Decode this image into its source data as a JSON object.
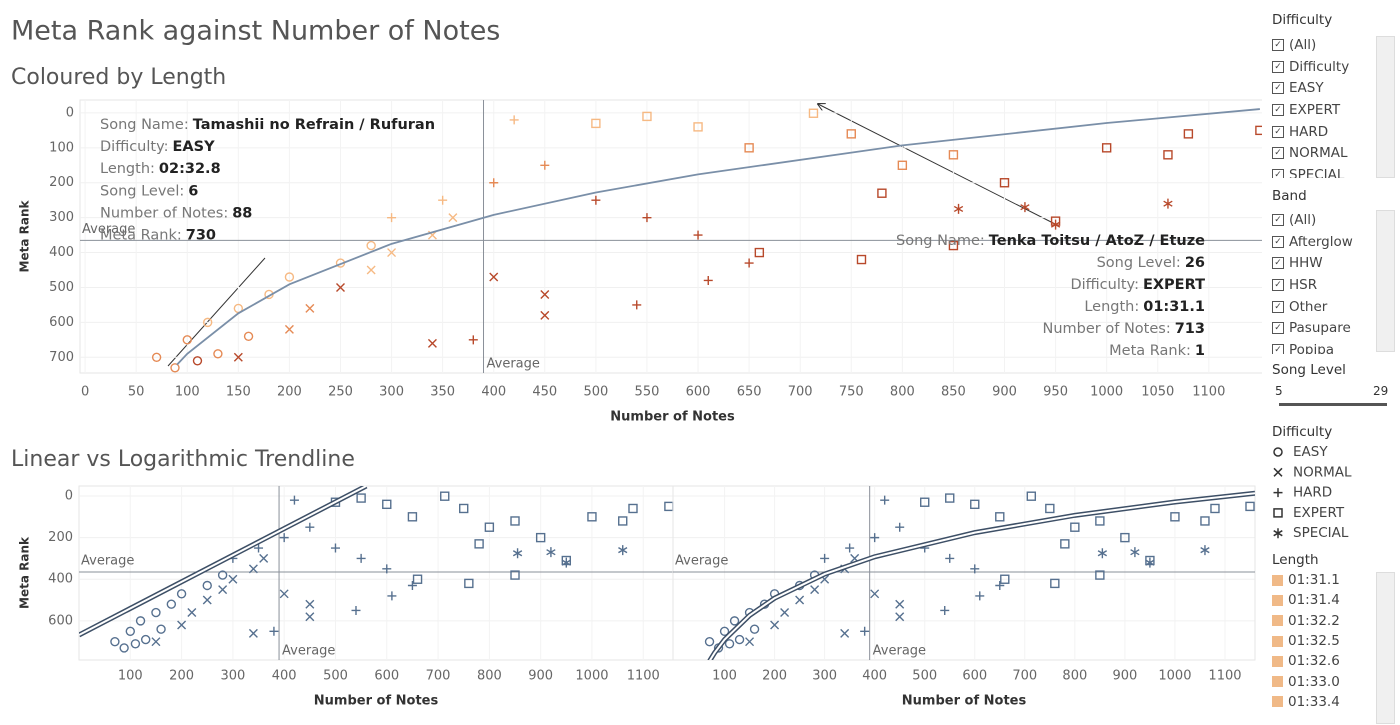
{
  "title": "Meta Rank against Number of Notes",
  "chart_data": [
    {
      "type": "scatter",
      "title": "Coloured by Length",
      "x_label": "Number of Notes",
      "y_label": "Meta Rank",
      "xlim": [
        -5,
        1155
      ],
      "ylim": [
        745,
        -37
      ],
      "xticks": [
        0,
        50,
        100,
        150,
        200,
        250,
        300,
        350,
        400,
        450,
        500,
        550,
        600,
        650,
        700,
        750,
        800,
        850,
        900,
        950,
        1000,
        1050,
        1100
      ],
      "yticks": [
        0,
        100,
        200,
        300,
        400,
        500,
        600,
        700
      ],
      "reference_lines": {
        "x": 390,
        "y": 365,
        "label": "Average"
      },
      "trendline": {
        "x": [
          90,
          100,
          150,
          200,
          300,
          400,
          500,
          600,
          800,
          1000,
          1150
        ],
        "values": [
          721,
          690,
          574,
          491,
          375,
          292,
          228,
          176,
          93,
          29,
          -11
        ],
        "color": "#7a8fa8"
      },
      "series": [
        {
          "name": "EASY",
          "marker": "circle",
          "x": [
            88,
            70,
            100,
            120,
            150,
            180,
            130,
            200,
            250,
            280,
            110,
            160
          ],
          "values": [
            730,
            700,
            650,
            600,
            560,
            520,
            690,
            470,
            430,
            380,
            710,
            640
          ],
          "colors": [
            "#e58a55",
            "#e58a55",
            "#e58a55",
            "#f6b983",
            "#f6b983",
            "#f6b983",
            "#e58a55",
            "#f6b983",
            "#f6b983",
            "#f6b983",
            "#b8492b",
            "#e58a55"
          ]
        },
        {
          "name": "NORMAL",
          "marker": "cross",
          "x": [
            150,
            200,
            220,
            250,
            280,
            300,
            340,
            360,
            400,
            450,
            340,
            450
          ],
          "values": [
            700,
            620,
            560,
            500,
            450,
            400,
            350,
            300,
            470,
            520,
            660,
            580
          ],
          "colors": [
            "#b8492b",
            "#e58a55",
            "#e58a55",
            "#b8492b",
            "#f6b983",
            "#f6b983",
            "#f6b983",
            "#f6b983",
            "#b8492b",
            "#b8492b",
            "#b8492b",
            "#b8492b"
          ]
        },
        {
          "name": "HARD",
          "marker": "plus",
          "x": [
            300,
            350,
            400,
            450,
            500,
            550,
            600,
            650,
            380,
            540,
            610,
            420
          ],
          "values": [
            300,
            250,
            200,
            150,
            250,
            300,
            350,
            430,
            650,
            550,
            480,
            20
          ],
          "colors": [
            "#f6b983",
            "#f6b983",
            "#e58a55",
            "#e58a55",
            "#b8492b",
            "#b8492b",
            "#b8492b",
            "#b8492b",
            "#b8492b",
            "#b8492b",
            "#b8492b",
            "#f6b983"
          ]
        },
        {
          "name": "EXPERT",
          "marker": "square",
          "x": [
            500,
            550,
            600,
            650,
            713,
            750,
            800,
            850,
            900,
            1000,
            1060,
            1150,
            1080,
            660,
            760,
            850,
            950,
            780
          ],
          "values": [
            30,
            10,
            40,
            100,
            1,
            60,
            150,
            120,
            200,
            100,
            120,
            50,
            60,
            400,
            420,
            380,
            310,
            230
          ],
          "colors": [
            "#f6b983",
            "#f6b983",
            "#f6b983",
            "#e58a55",
            "#f6b983",
            "#e58a55",
            "#e58a55",
            "#e58a55",
            "#b8492b",
            "#b8492b",
            "#b8492b",
            "#b8492b",
            "#b8492b",
            "#b8492b",
            "#b8492b",
            "#b8492b",
            "#b8492b",
            "#b8492b"
          ]
        },
        {
          "name": "SPECIAL",
          "marker": "star",
          "x": [
            855,
            920,
            950,
            1060
          ],
          "values": [
            275,
            270,
            320,
            260
          ],
          "colors": [
            "#b8492b",
            "#b8492b",
            "#b8492b",
            "#b8492b"
          ]
        }
      ],
      "annotations": [
        {
          "lines": [
            {
              "key": "Song Name:",
              "value": "Tamashii no Refrain / Rufuran"
            },
            {
              "key": "Difficulty:",
              "value": "EASY"
            },
            {
              "key": "Length:",
              "value": "02:32.8"
            },
            {
              "key": "Song Level:",
              "value": 6
            },
            {
              "key": "Number of Notes:",
              "value": 88
            },
            {
              "key": "Meta Rank:",
              "value": 730
            }
          ]
        },
        {
          "lines": [
            {
              "key": "Song Name:",
              "value": "Tenka Toitsu / AtoZ / Etuze"
            },
            {
              "key": "Song Level:",
              "value": 26
            },
            {
              "key": "Difficulty:",
              "value": "EXPERT"
            },
            {
              "key": "Length:",
              "value": "01:31.1"
            },
            {
              "key": "Number of Notes:",
              "value": 713
            },
            {
              "key": "Meta Rank:",
              "value": 1
            }
          ]
        }
      ]
    },
    {
      "type": "scatter",
      "title": "Linear vs Logarithmic Trendline",
      "x_label": "Number of Notes",
      "y_label": "Meta Rank",
      "color": "#56708f",
      "xlim": [
        0,
        1158
      ],
      "ylim": [
        788,
        -48
      ],
      "xticks": [
        100,
        200,
        300,
        400,
        500,
        600,
        700,
        800,
        900,
        1000,
        1100
      ],
      "yticks": [
        0,
        200,
        400,
        600
      ],
      "reference_lines": {
        "x": 390,
        "y": 365,
        "label": "Average"
      },
      "trendline": {
        "x": [
          0,
          560
        ],
        "values": [
          668,
          -48
        ],
        "color": "#3d4f66"
      },
      "series": [
        {
          "name": "EASY",
          "marker": "circle",
          "x": [
            88,
            70,
            100,
            120,
            150,
            180,
            130,
            200,
            250,
            280,
            110,
            160
          ],
          "values": [
            730,
            700,
            650,
            600,
            560,
            520,
            690,
            470,
            430,
            380,
            710,
            640
          ]
        },
        {
          "name": "NORMAL",
          "marker": "cross",
          "x": [
            150,
            200,
            220,
            250,
            280,
            300,
            340,
            360,
            400,
            450,
            340,
            450
          ],
          "values": [
            700,
            620,
            560,
            500,
            450,
            400,
            350,
            300,
            470,
            520,
            660,
            580
          ]
        },
        {
          "name": "HARD",
          "marker": "plus",
          "x": [
            300,
            350,
            400,
            450,
            500,
            550,
            600,
            650,
            380,
            540,
            610,
            420
          ],
          "values": [
            300,
            250,
            200,
            150,
            250,
            300,
            350,
            430,
            650,
            550,
            480,
            20
          ]
        },
        {
          "name": "EXPERT",
          "marker": "square",
          "x": [
            500,
            550,
            600,
            650,
            713,
            750,
            800,
            850,
            900,
            1000,
            1060,
            1150,
            1080,
            660,
            760,
            850,
            950,
            780
          ],
          "values": [
            30,
            10,
            40,
            100,
            1,
            60,
            150,
            120,
            200,
            100,
            120,
            50,
            60,
            400,
            420,
            380,
            310,
            230
          ]
        },
        {
          "name": "SPECIAL",
          "marker": "star",
          "x": [
            855,
            920,
            950,
            1060
          ],
          "values": [
            275,
            270,
            320,
            260
          ]
        }
      ]
    },
    {
      "type": "scatter",
      "x_label": "Number of Notes",
      "color": "#56708f",
      "xlim": [
        -3,
        1160
      ],
      "ylim": [
        788,
        -48
      ],
      "xticks": [
        100,
        200,
        300,
        400,
        500,
        600,
        700,
        800,
        900,
        1000,
        1100
      ],
      "reference_lines": {
        "x": 390,
        "y": 365,
        "label": "Average"
      },
      "trendline": {
        "x": [
          70,
          80,
          100,
          150,
          200,
          300,
          400,
          600,
          800,
          1000,
          1160
        ],
        "values": [
          793,
          754,
          690,
          574,
          491,
          375,
          292,
          176,
          93,
          29,
          -13
        ],
        "color": "#3d4f66"
      },
      "series": [
        {
          "name": "EASY",
          "marker": "circle",
          "x": [
            88,
            70,
            100,
            120,
            150,
            180,
            130,
            200,
            250,
            280,
            110,
            160
          ],
          "values": [
            730,
            700,
            650,
            600,
            560,
            520,
            690,
            470,
            430,
            380,
            710,
            640
          ]
        },
        {
          "name": "NORMAL",
          "marker": "cross",
          "x": [
            150,
            200,
            220,
            250,
            280,
            300,
            340,
            360,
            400,
            450,
            340,
            450
          ],
          "values": [
            700,
            620,
            560,
            500,
            450,
            400,
            350,
            300,
            470,
            520,
            660,
            580
          ]
        },
        {
          "name": "HARD",
          "marker": "plus",
          "x": [
            300,
            350,
            400,
            450,
            500,
            550,
            600,
            650,
            380,
            540,
            610,
            420
          ],
          "values": [
            300,
            250,
            200,
            150,
            250,
            300,
            350,
            430,
            650,
            550,
            480,
            20
          ]
        },
        {
          "name": "EXPERT",
          "marker": "square",
          "x": [
            500,
            550,
            600,
            650,
            713,
            750,
            800,
            850,
            900,
            1000,
            1060,
            1150,
            1080,
            660,
            760,
            850,
            950,
            780
          ],
          "values": [
            30,
            10,
            40,
            100,
            1,
            60,
            150,
            120,
            200,
            100,
            120,
            50,
            60,
            400,
            420,
            380,
            310,
            230
          ]
        },
        {
          "name": "SPECIAL",
          "marker": "star",
          "x": [
            855,
            920,
            950,
            1060
          ],
          "values": [
            275,
            270,
            320,
            260
          ]
        }
      ]
    }
  ],
  "filters": [
    {
      "title": "Difficulty",
      "items": [
        "(All)",
        "Difficulty",
        "EASY",
        "EXPERT",
        "HARD",
        "NORMAL",
        "SPECIAL"
      ]
    },
    {
      "title": "Band",
      "items": [
        "(All)",
        "Afterglow",
        "HHW",
        "HSR",
        "Other",
        "Pasupare",
        "Popipa"
      ]
    }
  ],
  "song_level": {
    "title": "Song Level",
    "min": 5,
    "max": 29
  },
  "shape_legend_title": "Difficulty",
  "length_legend": {
    "title": "Length",
    "items": [
      "01:31.1",
      "01:31.4",
      "01:32.2",
      "01:32.5",
      "01:32.6",
      "01:33.0",
      "01:33.4"
    ],
    "color": "#f0b987"
  }
}
